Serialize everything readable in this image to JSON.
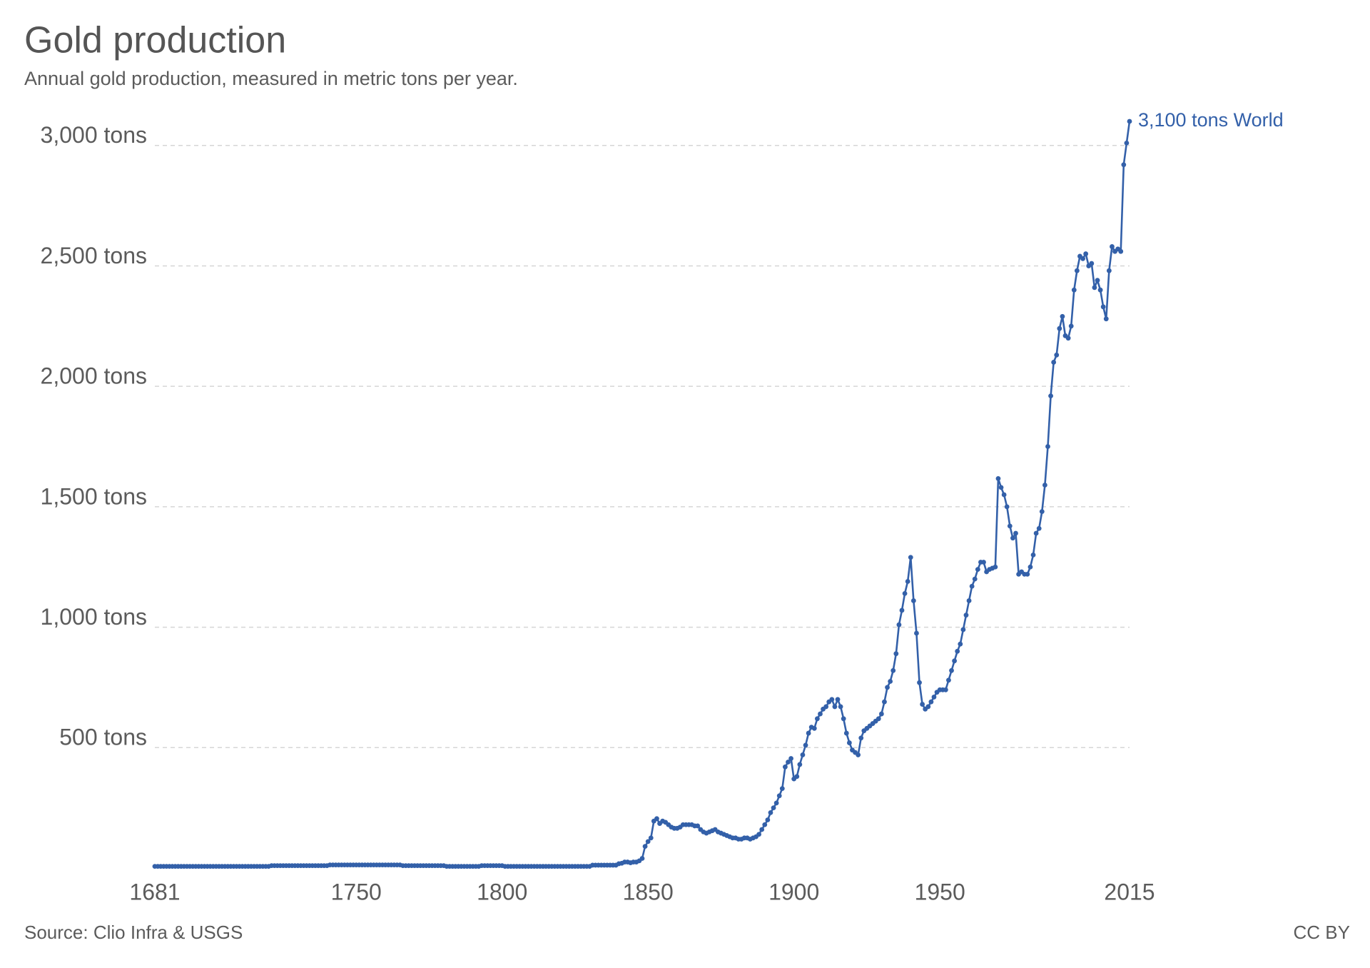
{
  "chart_data": {
    "type": "line",
    "title": "Gold production",
    "subtitle": "Annual gold production, measured in metric tons per year.",
    "source": "Source: Clio Infra & USGS",
    "license": "CC BY",
    "end_label": "3,100 tons World",
    "grid": true,
    "xlim": [
      1681,
      2015
    ],
    "xticks": [
      1681,
      1750,
      1800,
      1850,
      1900,
      1950,
      2015
    ],
    "ylim": [
      0,
      3100
    ],
    "yticks": [
      {
        "value": 500,
        "label": "500 tons"
      },
      {
        "value": 1000,
        "label": "1,000 tons"
      },
      {
        "value": 1500,
        "label": "1,500 tons"
      },
      {
        "value": 2000,
        "label": "2,000 tons"
      },
      {
        "value": 2500,
        "label": "2,500 tons"
      },
      {
        "value": 3000,
        "label": "3,000 tons"
      }
    ],
    "x": [
      1681,
      1682,
      1683,
      1684,
      1685,
      1686,
      1687,
      1688,
      1689,
      1690,
      1691,
      1692,
      1693,
      1694,
      1695,
      1696,
      1697,
      1698,
      1699,
      1700,
      1701,
      1702,
      1703,
      1704,
      1705,
      1706,
      1707,
      1708,
      1709,
      1710,
      1711,
      1712,
      1713,
      1714,
      1715,
      1716,
      1717,
      1718,
      1719,
      1720,
      1721,
      1722,
      1723,
      1724,
      1725,
      1726,
      1727,
      1728,
      1729,
      1730,
      1731,
      1732,
      1733,
      1734,
      1735,
      1736,
      1737,
      1738,
      1739,
      1740,
      1741,
      1742,
      1743,
      1744,
      1745,
      1746,
      1747,
      1748,
      1749,
      1750,
      1751,
      1752,
      1753,
      1754,
      1755,
      1756,
      1757,
      1758,
      1759,
      1760,
      1761,
      1762,
      1763,
      1764,
      1765,
      1766,
      1767,
      1768,
      1769,
      1770,
      1771,
      1772,
      1773,
      1774,
      1775,
      1776,
      1777,
      1778,
      1779,
      1780,
      1781,
      1782,
      1783,
      1784,
      1785,
      1786,
      1787,
      1788,
      1789,
      1790,
      1791,
      1792,
      1793,
      1794,
      1795,
      1796,
      1797,
      1798,
      1799,
      1800,
      1801,
      1802,
      1803,
      1804,
      1805,
      1806,
      1807,
      1808,
      1809,
      1810,
      1811,
      1812,
      1813,
      1814,
      1815,
      1816,
      1817,
      1818,
      1819,
      1820,
      1821,
      1822,
      1823,
      1824,
      1825,
      1826,
      1827,
      1828,
      1829,
      1830,
      1831,
      1832,
      1833,
      1834,
      1835,
      1836,
      1837,
      1838,
      1839,
      1840,
      1841,
      1842,
      1843,
      1844,
      1845,
      1846,
      1847,
      1848,
      1849,
      1850,
      1851,
      1852,
      1853,
      1854,
      1855,
      1856,
      1857,
      1858,
      1859,
      1860,
      1861,
      1862,
      1863,
      1864,
      1865,
      1866,
      1867,
      1868,
      1869,
      1870,
      1871,
      1872,
      1873,
      1874,
      1875,
      1876,
      1877,
      1878,
      1879,
      1880,
      1881,
      1882,
      1883,
      1884,
      1885,
      1886,
      1887,
      1888,
      1889,
      1890,
      1891,
      1892,
      1893,
      1894,
      1895,
      1896,
      1897,
      1898,
      1899,
      1900,
      1901,
      1902,
      1903,
      1904,
      1905,
      1906,
      1907,
      1908,
      1909,
      1910,
      1911,
      1912,
      1913,
      1914,
      1915,
      1916,
      1917,
      1918,
      1919,
      1920,
      1921,
      1922,
      1923,
      1924,
      1925,
      1926,
      1927,
      1928,
      1929,
      1930,
      1931,
      1932,
      1933,
      1934,
      1935,
      1936,
      1937,
      1938,
      1939,
      1940,
      1941,
      1942,
      1943,
      1944,
      1945,
      1946,
      1947,
      1948,
      1949,
      1950,
      1951,
      1952,
      1953,
      1954,
      1955,
      1956,
      1957,
      1958,
      1959,
      1960,
      1961,
      1962,
      1963,
      1964,
      1965,
      1966,
      1967,
      1968,
      1969,
      1970,
      1971,
      1972,
      1973,
      1974,
      1975,
      1976,
      1977,
      1978,
      1979,
      1980,
      1981,
      1982,
      1983,
      1984,
      1985,
      1986,
      1987,
      1988,
      1989,
      1990,
      1991,
      1992,
      1993,
      1994,
      1995,
      1996,
      1997,
      1998,
      1999,
      2000,
      2001,
      2002,
      2003,
      2004,
      2005,
      2006,
      2007,
      2008,
      2009,
      2010,
      2011,
      2012,
      2013,
      2014,
      2015
    ],
    "series": [
      {
        "name": "World",
        "color": "#3360a9",
        "values": [
          7,
          7,
          7,
          7,
          7,
          7,
          7,
          7,
          7,
          7,
          7,
          7,
          7,
          7,
          7,
          7,
          7,
          7,
          7,
          7,
          7,
          7,
          7,
          7,
          7,
          7,
          7,
          7,
          7,
          7,
          7,
          7,
          7,
          7,
          7,
          7,
          7,
          7,
          7,
          7,
          10,
          10,
          10,
          10,
          10,
          10,
          10,
          10,
          10,
          10,
          10,
          10,
          10,
          10,
          10,
          10,
          10,
          10,
          10,
          10,
          13,
          13,
          13,
          13,
          13,
          13,
          13,
          13,
          13,
          13,
          13,
          13,
          13,
          13,
          13,
          13,
          13,
          13,
          13,
          13,
          13,
          13,
          13,
          13,
          13,
          10,
          10,
          10,
          10,
          10,
          10,
          10,
          10,
          10,
          10,
          10,
          10,
          10,
          10,
          10,
          7,
          7,
          7,
          7,
          7,
          7,
          7,
          7,
          7,
          7,
          7,
          7,
          10,
          10,
          10,
          10,
          10,
          10,
          10,
          10,
          7,
          7,
          7,
          7,
          7,
          7,
          7,
          7,
          7,
          7,
          7,
          7,
          7,
          7,
          7,
          7,
          7,
          7,
          7,
          7,
          7,
          7,
          7,
          7,
          7,
          7,
          7,
          7,
          7,
          7,
          12,
          12,
          12,
          12,
          12,
          12,
          12,
          12,
          12,
          18,
          20,
          25,
          25,
          22,
          25,
          25,
          30,
          40,
          90,
          110,
          125,
          195,
          205,
          185,
          195,
          190,
          180,
          170,
          165,
          165,
          170,
          180,
          180,
          180,
          180,
          175,
          175,
          160,
          150,
          145,
          150,
          155,
          160,
          150,
          145,
          140,
          135,
          130,
          125,
          125,
          120,
          120,
          125,
          125,
          120,
          125,
          130,
          140,
          160,
          180,
          200,
          230,
          250,
          270,
          300,
          330,
          420,
          440,
          455,
          370,
          380,
          430,
          470,
          510,
          560,
          585,
          580,
          620,
          640,
          660,
          670,
          690,
          700,
          670,
          700,
          670,
          620,
          560,
          520,
          490,
          480,
          470,
          540,
          570,
          580,
          590,
          600,
          610,
          620,
          640,
          690,
          750,
          775,
          820,
          890,
          1010,
          1070,
          1140,
          1190,
          1290,
          1110,
          975,
          770,
          680,
          660,
          670,
          690,
          710,
          730,
          740,
          740,
          740,
          780,
          820,
          860,
          900,
          930,
          990,
          1050,
          1110,
          1170,
          1200,
          1240,
          1270,
          1270,
          1230,
          1240,
          1245,
          1250,
          1617,
          1580,
          1550,
          1500,
          1420,
          1370,
          1390,
          1220,
          1230,
          1220,
          1220,
          1250,
          1300,
          1390,
          1410,
          1480,
          1590,
          1750,
          1960,
          2100,
          2130,
          2240,
          2290,
          2210,
          2200,
          2250,
          2400,
          2480,
          2540,
          2530,
          2550,
          2500,
          2510,
          2410,
          2440,
          2400,
          2330,
          2280,
          2480,
          2580,
          2560,
          2570,
          2560,
          2920,
          3010,
          3100
        ]
      }
    ]
  }
}
